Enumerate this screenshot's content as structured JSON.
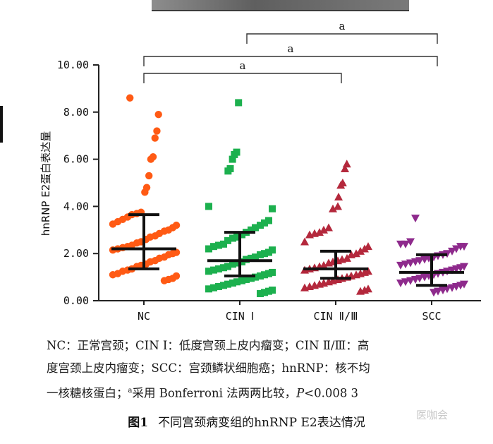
{
  "chart_data": {
    "type": "scatter",
    "ylabel": "hnRNP E2蛋白表达量",
    "xlabel": "",
    "ylim": [
      0,
      10
    ],
    "yticks": [
      "0.00",
      "2.00",
      "4.00",
      "6.00",
      "8.00",
      "10.00"
    ],
    "categories": [
      "NC",
      "CIN Ⅰ",
      "CIN Ⅱ/Ⅲ",
      "SCC"
    ],
    "summary": [
      {
        "group": "NC",
        "median": 2.2,
        "lower": 1.35,
        "upper": 3.65
      },
      {
        "group": "CIN Ⅰ",
        "median": 1.7,
        "lower": 1.05,
        "upper": 2.9
      },
      {
        "group": "CIN Ⅱ/Ⅲ",
        "median": 1.35,
        "lower": 0.95,
        "upper": 2.1
      },
      {
        "group": "SCC",
        "median": 1.2,
        "lower": 0.65,
        "upper": 1.95
      }
    ],
    "series": [
      {
        "name": "NC",
        "marker": "circle",
        "color": "#ff5a14",
        "values": [
          8.6,
          7.9,
          7.2,
          6.9,
          6.1,
          6.0,
          5.3,
          4.8,
          4.6,
          3.75,
          3.7,
          3.65,
          3.55,
          3.45,
          3.35,
          3.25,
          3.2,
          3.1,
          3.0,
          2.95,
          2.85,
          2.75,
          2.7,
          2.6,
          2.5,
          2.45,
          2.35,
          2.3,
          2.25,
          2.2,
          2.15,
          2.05,
          2.0,
          1.95,
          1.85,
          1.8,
          1.7,
          1.65,
          1.55,
          1.5,
          1.45,
          1.35,
          1.3,
          1.25,
          1.15,
          1.1,
          1.05,
          0.95,
          0.9,
          0.85
        ]
      },
      {
        "name": "CIN Ⅰ",
        "marker": "square",
        "color": "#1cb04e",
        "values": [
          8.4,
          6.3,
          6.2,
          6.0,
          5.6,
          5.5,
          4.0,
          3.9,
          3.4,
          3.3,
          3.2,
          3.1,
          3.0,
          2.9,
          2.8,
          2.7,
          2.65,
          2.55,
          2.4,
          2.35,
          2.3,
          2.2,
          2.15,
          2.05,
          2.0,
          1.95,
          1.85,
          1.8,
          1.75,
          1.65,
          1.6,
          1.55,
          1.45,
          1.4,
          1.35,
          1.3,
          1.25,
          1.2,
          1.15,
          1.1,
          1.05,
          1.0,
          0.95,
          0.9,
          0.85,
          0.8,
          0.75,
          0.7,
          0.65,
          0.6,
          0.55,
          0.5,
          0.45,
          0.4,
          0.35,
          0.3
        ]
      },
      {
        "name": "CIN Ⅱ/Ⅲ",
        "marker": "triangle-up",
        "color": "#b4283c",
        "values": [
          5.8,
          5.6,
          5.0,
          4.9,
          4.4,
          4.0,
          3.9,
          3.1,
          3.0,
          2.9,
          2.85,
          2.8,
          2.5,
          2.3,
          2.2,
          2.1,
          2.0,
          1.95,
          1.8,
          1.75,
          1.7,
          1.65,
          1.6,
          1.5,
          1.45,
          1.4,
          1.35,
          1.3,
          1.25,
          1.2,
          1.15,
          1.1,
          1.05,
          1.0,
          0.95,
          0.9,
          0.85,
          0.8,
          0.75,
          0.7,
          0.65,
          0.6,
          0.55,
          0.5,
          0.45,
          0.4
        ]
      },
      {
        "name": "SCC",
        "marker": "triangle-down",
        "color": "#8e2a8c",
        "values": [
          3.5,
          2.5,
          2.4,
          2.4,
          2.3,
          2.3,
          2.2,
          2.1,
          2.0,
          1.95,
          1.9,
          1.85,
          1.8,
          1.75,
          1.7,
          1.65,
          1.6,
          1.55,
          1.5,
          1.45,
          1.4,
          1.35,
          1.3,
          1.25,
          1.2,
          1.15,
          1.1,
          1.05,
          1.0,
          0.95,
          0.9,
          0.85,
          0.8,
          0.75,
          0.7,
          0.65,
          0.6,
          0.55,
          0.5,
          0.45,
          0.4,
          0.35
        ]
      }
    ],
    "annotations": [
      {
        "from": "NC",
        "to": "CIN Ⅱ/Ⅲ",
        "text": "a"
      },
      {
        "from": "NC",
        "to": "SCC",
        "text": "a"
      },
      {
        "from": "CIN Ⅰ",
        "to": "SCC",
        "text": "a"
      }
    ]
  },
  "caption": {
    "line1": "NC：正常宫颈；CIN Ⅰ：低度宫颈上皮内瘤变；CIN Ⅱ/Ⅲ：高",
    "line2": "度宫颈上皮内瘤变；SCC：宫颈鳞状细胞癌；hnRNP：核不均",
    "line3_pre": "一核糖核蛋白；",
    "line3_sup": "a",
    "line3_mid": "采用 Bonferroni 法两两比较，",
    "line3_p": "P",
    "line3_post": "<0.008 3"
  },
  "figure_title": {
    "number": "图1",
    "text": "不同宫颈病变组的hnRNP E2表达情况"
  },
  "watermark": "医咖会"
}
